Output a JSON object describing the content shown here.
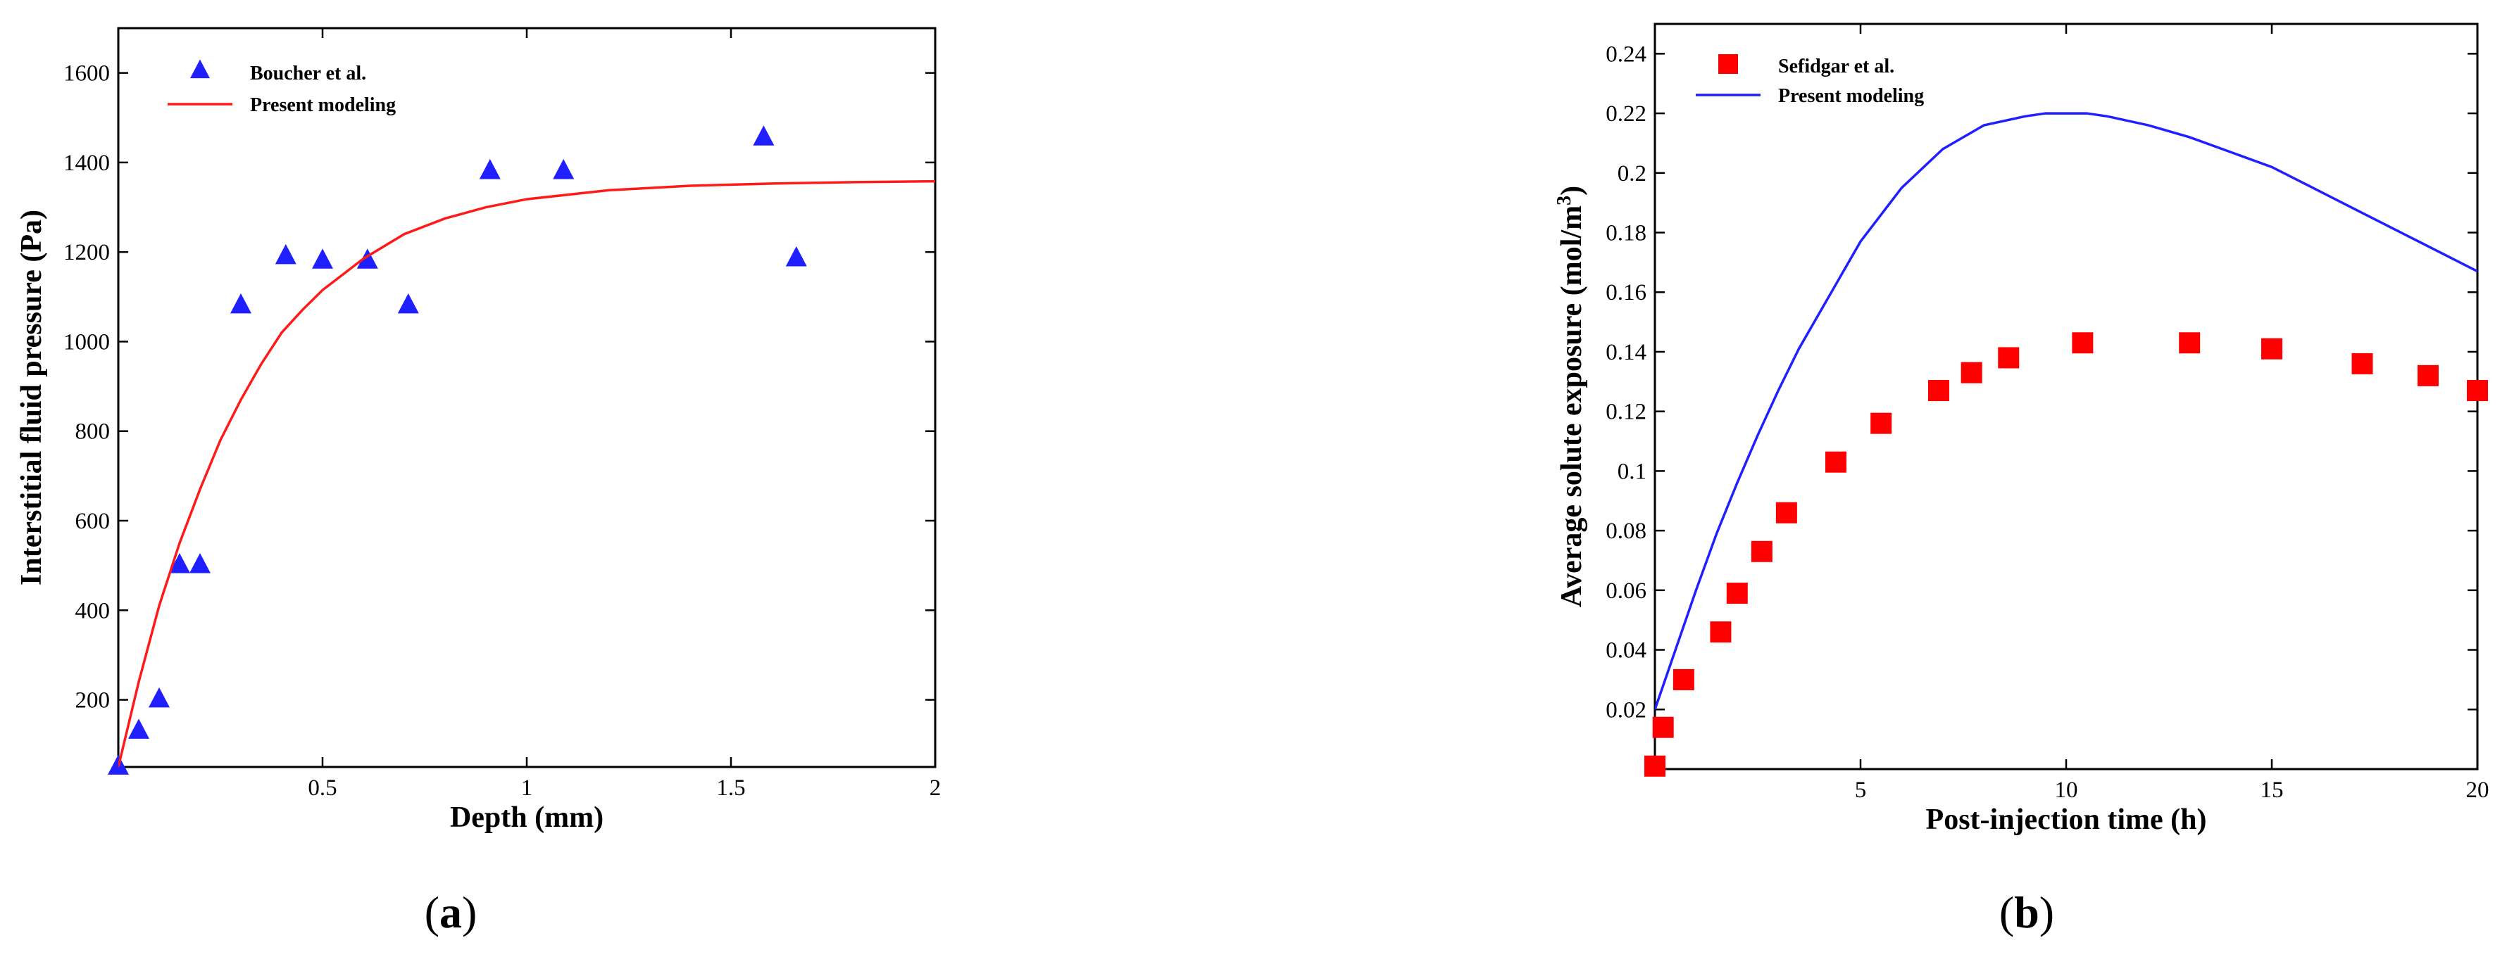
{
  "figure": {
    "panel_labels": [
      "(a)",
      "(b)"
    ]
  },
  "chart_data": [
    {
      "type": "scatter",
      "panel": "a",
      "xlabel": "Depth (mm)",
      "ylabel": "Interstitial fluid pressure (Pa)",
      "xlim": [
        0,
        2
      ],
      "ylim": [
        50,
        1700
      ],
      "x_ticks": [
        0.5,
        1,
        1.5,
        2
      ],
      "x_tick_labels": [
        "0.5",
        "1",
        "1.5",
        "2"
      ],
      "y_ticks": [
        200,
        400,
        600,
        800,
        1000,
        1200,
        1400,
        1600
      ],
      "y_tick_labels": [
        "200",
        "400",
        "600",
        "800",
        "1000",
        "1200",
        "1400",
        "1600"
      ],
      "grid": false,
      "legend": "top-left",
      "series": [
        {
          "name": "Boucher et al.",
          "kind": "scatter",
          "marker": "triangle",
          "color": "#1f1fff",
          "x": [
            0.0,
            0.05,
            0.1,
            0.15,
            0.2,
            0.3,
            0.41,
            0.5,
            0.61,
            0.71,
            0.91,
            1.09,
            1.58,
            1.66
          ],
          "y": [
            50,
            130,
            200,
            500,
            500,
            1080,
            1190,
            1180,
            1180,
            1080,
            1380,
            1380,
            1455,
            1185
          ]
        },
        {
          "name": "Present modeling",
          "kind": "line",
          "color": "#ff1a1a",
          "x": [
            0.0,
            0.05,
            0.1,
            0.15,
            0.2,
            0.25,
            0.3,
            0.35,
            0.4,
            0.45,
            0.5,
            0.6,
            0.7,
            0.8,
            0.9,
            1.0,
            1.2,
            1.4,
            1.6,
            1.8,
            2.0
          ],
          "y": [
            50,
            240,
            410,
            550,
            670,
            780,
            870,
            950,
            1020,
            1070,
            1115,
            1185,
            1240,
            1275,
            1300,
            1318,
            1338,
            1348,
            1353,
            1356,
            1358
          ]
        }
      ]
    },
    {
      "type": "scatter",
      "panel": "b",
      "xlabel": "Post-injection time (h)",
      "ylabel": "Average solute exposure (mol/m",
      "ylabel_superscript": "3",
      "ylabel_suffix": ")",
      "xlim": [
        0,
        20
      ],
      "ylim": [
        0,
        0.25
      ],
      "x_ticks": [
        5,
        10,
        15,
        20
      ],
      "x_tick_labels": [
        "5",
        "10",
        "15",
        "20"
      ],
      "y_ticks": [
        0.02,
        0.04,
        0.06,
        0.08,
        0.1,
        0.12,
        0.14,
        0.16,
        0.18,
        0.2,
        0.22,
        0.24
      ],
      "y_tick_labels": [
        "0.02",
        "0.04",
        "0.06",
        "0.08",
        "0.1",
        "0.12",
        "0.14",
        "0.16",
        "0.18",
        "0.2",
        "0.22",
        "0.24"
      ],
      "grid": false,
      "legend": "top-left",
      "series": [
        {
          "name": "Sefidgar et al.",
          "kind": "scatter",
          "marker": "square",
          "color": "#ff0000",
          "x": [
            0.0,
            0.2,
            0.7,
            1.6,
            2.0,
            2.6,
            3.2,
            4.4,
            5.5,
            6.9,
            7.7,
            8.6,
            10.4,
            13.0,
            15.0,
            17.2,
            18.8,
            20.0
          ],
          "y": [
            0.001,
            0.014,
            0.03,
            0.046,
            0.059,
            0.073,
            0.086,
            0.103,
            0.116,
            0.127,
            0.133,
            0.138,
            0.143,
            0.143,
            0.141,
            0.136,
            0.132,
            0.127
          ]
        },
        {
          "name": "Present modeling",
          "kind": "line",
          "color": "#1f1fff",
          "x": [
            0.0,
            0.5,
            1.0,
            1.5,
            2.0,
            2.5,
            3.0,
            3.5,
            4.0,
            4.5,
            5.0,
            5.5,
            6.0,
            7.0,
            8.0,
            9.0,
            9.5,
            10.5,
            11.0,
            12.0,
            13.0,
            14.0,
            15.0,
            16.0,
            17.0,
            18.0,
            19.0,
            20.0
          ],
          "y": [
            0.02,
            0.04,
            0.06,
            0.079,
            0.096,
            0.112,
            0.127,
            0.141,
            0.153,
            0.165,
            0.177,
            0.186,
            0.195,
            0.208,
            0.216,
            0.219,
            0.22,
            0.22,
            0.219,
            0.216,
            0.212,
            0.207,
            0.202,
            0.195,
            0.188,
            0.181,
            0.174,
            0.167
          ]
        }
      ]
    }
  ]
}
